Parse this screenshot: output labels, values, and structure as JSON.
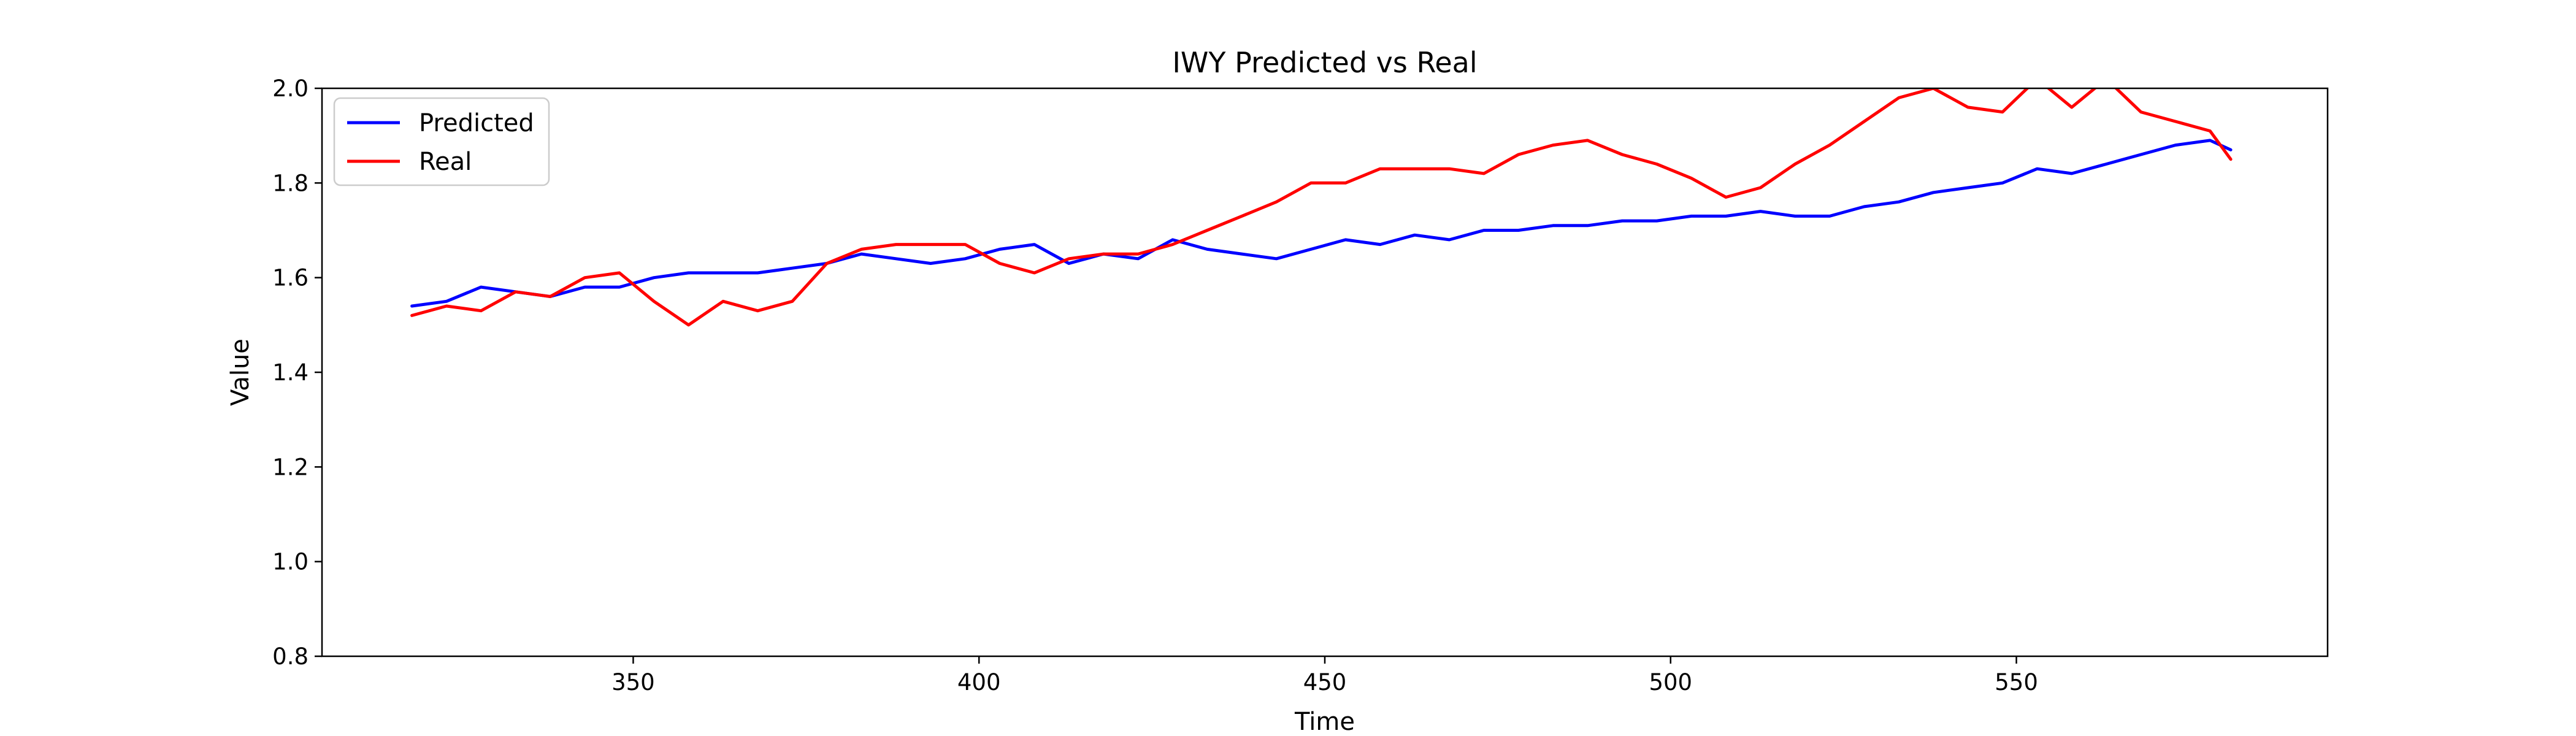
{
  "chart_data": {
    "type": "line",
    "title": "IWY Predicted vs Real",
    "xlabel": "Time",
    "ylabel": "Value",
    "xlim": [
      305,
      595
    ],
    "ylim": [
      0.8,
      2.0
    ],
    "xticks": [
      350,
      400,
      450,
      500,
      550
    ],
    "yticks": [
      0.8,
      1.0,
      1.2,
      1.4,
      1.6,
      1.8,
      2.0
    ],
    "xtick_labels": [
      "350",
      "400",
      "450",
      "500",
      "550"
    ],
    "ytick_labels": [
      "0.8",
      "1.0",
      "1.2",
      "1.4",
      "1.6",
      "1.8",
      "2.0"
    ],
    "legend_position": "upper-left",
    "grid": false,
    "x": [
      318,
      323,
      328,
      333,
      338,
      343,
      348,
      353,
      358,
      363,
      368,
      373,
      378,
      383,
      388,
      393,
      398,
      403,
      408,
      413,
      418,
      423,
      428,
      433,
      438,
      443,
      448,
      453,
      458,
      463,
      468,
      473,
      478,
      483,
      488,
      493,
      498,
      503,
      508,
      513,
      518,
      523,
      528,
      533,
      538,
      543,
      548,
      553,
      558,
      563,
      568,
      573,
      578,
      581
    ],
    "series": [
      {
        "name": "Predicted",
        "color": "#0000ff",
        "values": [
          1.54,
          1.55,
          1.58,
          1.57,
          1.56,
          1.58,
          1.58,
          1.6,
          1.61,
          1.61,
          1.61,
          1.62,
          1.63,
          1.65,
          1.64,
          1.63,
          1.64,
          1.66,
          1.67,
          1.63,
          1.65,
          1.64,
          1.68,
          1.66,
          1.65,
          1.64,
          1.66,
          1.68,
          1.67,
          1.69,
          1.68,
          1.7,
          1.7,
          1.71,
          1.71,
          1.72,
          1.72,
          1.73,
          1.73,
          1.74,
          1.73,
          1.73,
          1.75,
          1.76,
          1.78,
          1.79,
          1.8,
          1.83,
          1.82,
          1.84,
          1.86,
          1.88,
          1.89,
          1.87
        ]
      },
      {
        "name": "Real",
        "color": "#ff0000",
        "values": [
          1.52,
          1.54,
          1.53,
          1.57,
          1.56,
          1.6,
          1.61,
          1.55,
          1.5,
          1.55,
          1.53,
          1.55,
          1.63,
          1.66,
          1.67,
          1.67,
          1.67,
          1.63,
          1.61,
          1.64,
          1.65,
          1.65,
          1.67,
          1.7,
          1.73,
          1.76,
          1.8,
          1.8,
          1.83,
          1.83,
          1.83,
          1.82,
          1.86,
          1.88,
          1.89,
          1.86,
          1.84,
          1.81,
          1.77,
          1.79,
          1.84,
          1.88,
          1.93,
          1.98,
          2.0,
          1.96,
          1.95,
          2.02,
          1.96,
          2.02,
          1.95,
          1.93,
          1.91,
          1.85
        ]
      }
    ]
  }
}
